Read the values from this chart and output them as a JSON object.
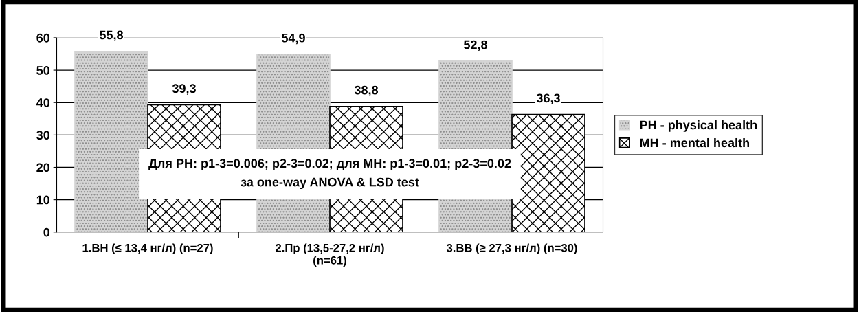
{
  "chart_data": {
    "type": "bar",
    "categories": [
      "1.ВН (≤ 13,4 нг/л) (n=27)",
      "2.Пр (13,5-27,2 нг/л)\n(n=61)",
      "3.ВВ (≥ 27,3 нг/л) (n=30)"
    ],
    "series": [
      {
        "name": "PH - physical health",
        "color": "#d4d4d4",
        "values": [
          55.8,
          54.9,
          52.8
        ],
        "value_labels": [
          "55,8",
          "54,9",
          "52,8"
        ]
      },
      {
        "name": "MH - mental health",
        "color": "#000000",
        "values": [
          39.3,
          38.8,
          36.3
        ],
        "value_labels": [
          "39,3",
          "38,8",
          "36,3"
        ]
      }
    ],
    "ylim": [
      0,
      60
    ],
    "yticks": [
      0,
      10,
      20,
      30,
      40,
      50,
      60
    ],
    "grid": "y",
    "legend": "right",
    "annotations": [
      "Для PH: p1-3=0.006; p2-3=0.02; для MH: p1-3=0.01; p2-3=0.02\nза one-way ANOVA & LSD test"
    ]
  }
}
